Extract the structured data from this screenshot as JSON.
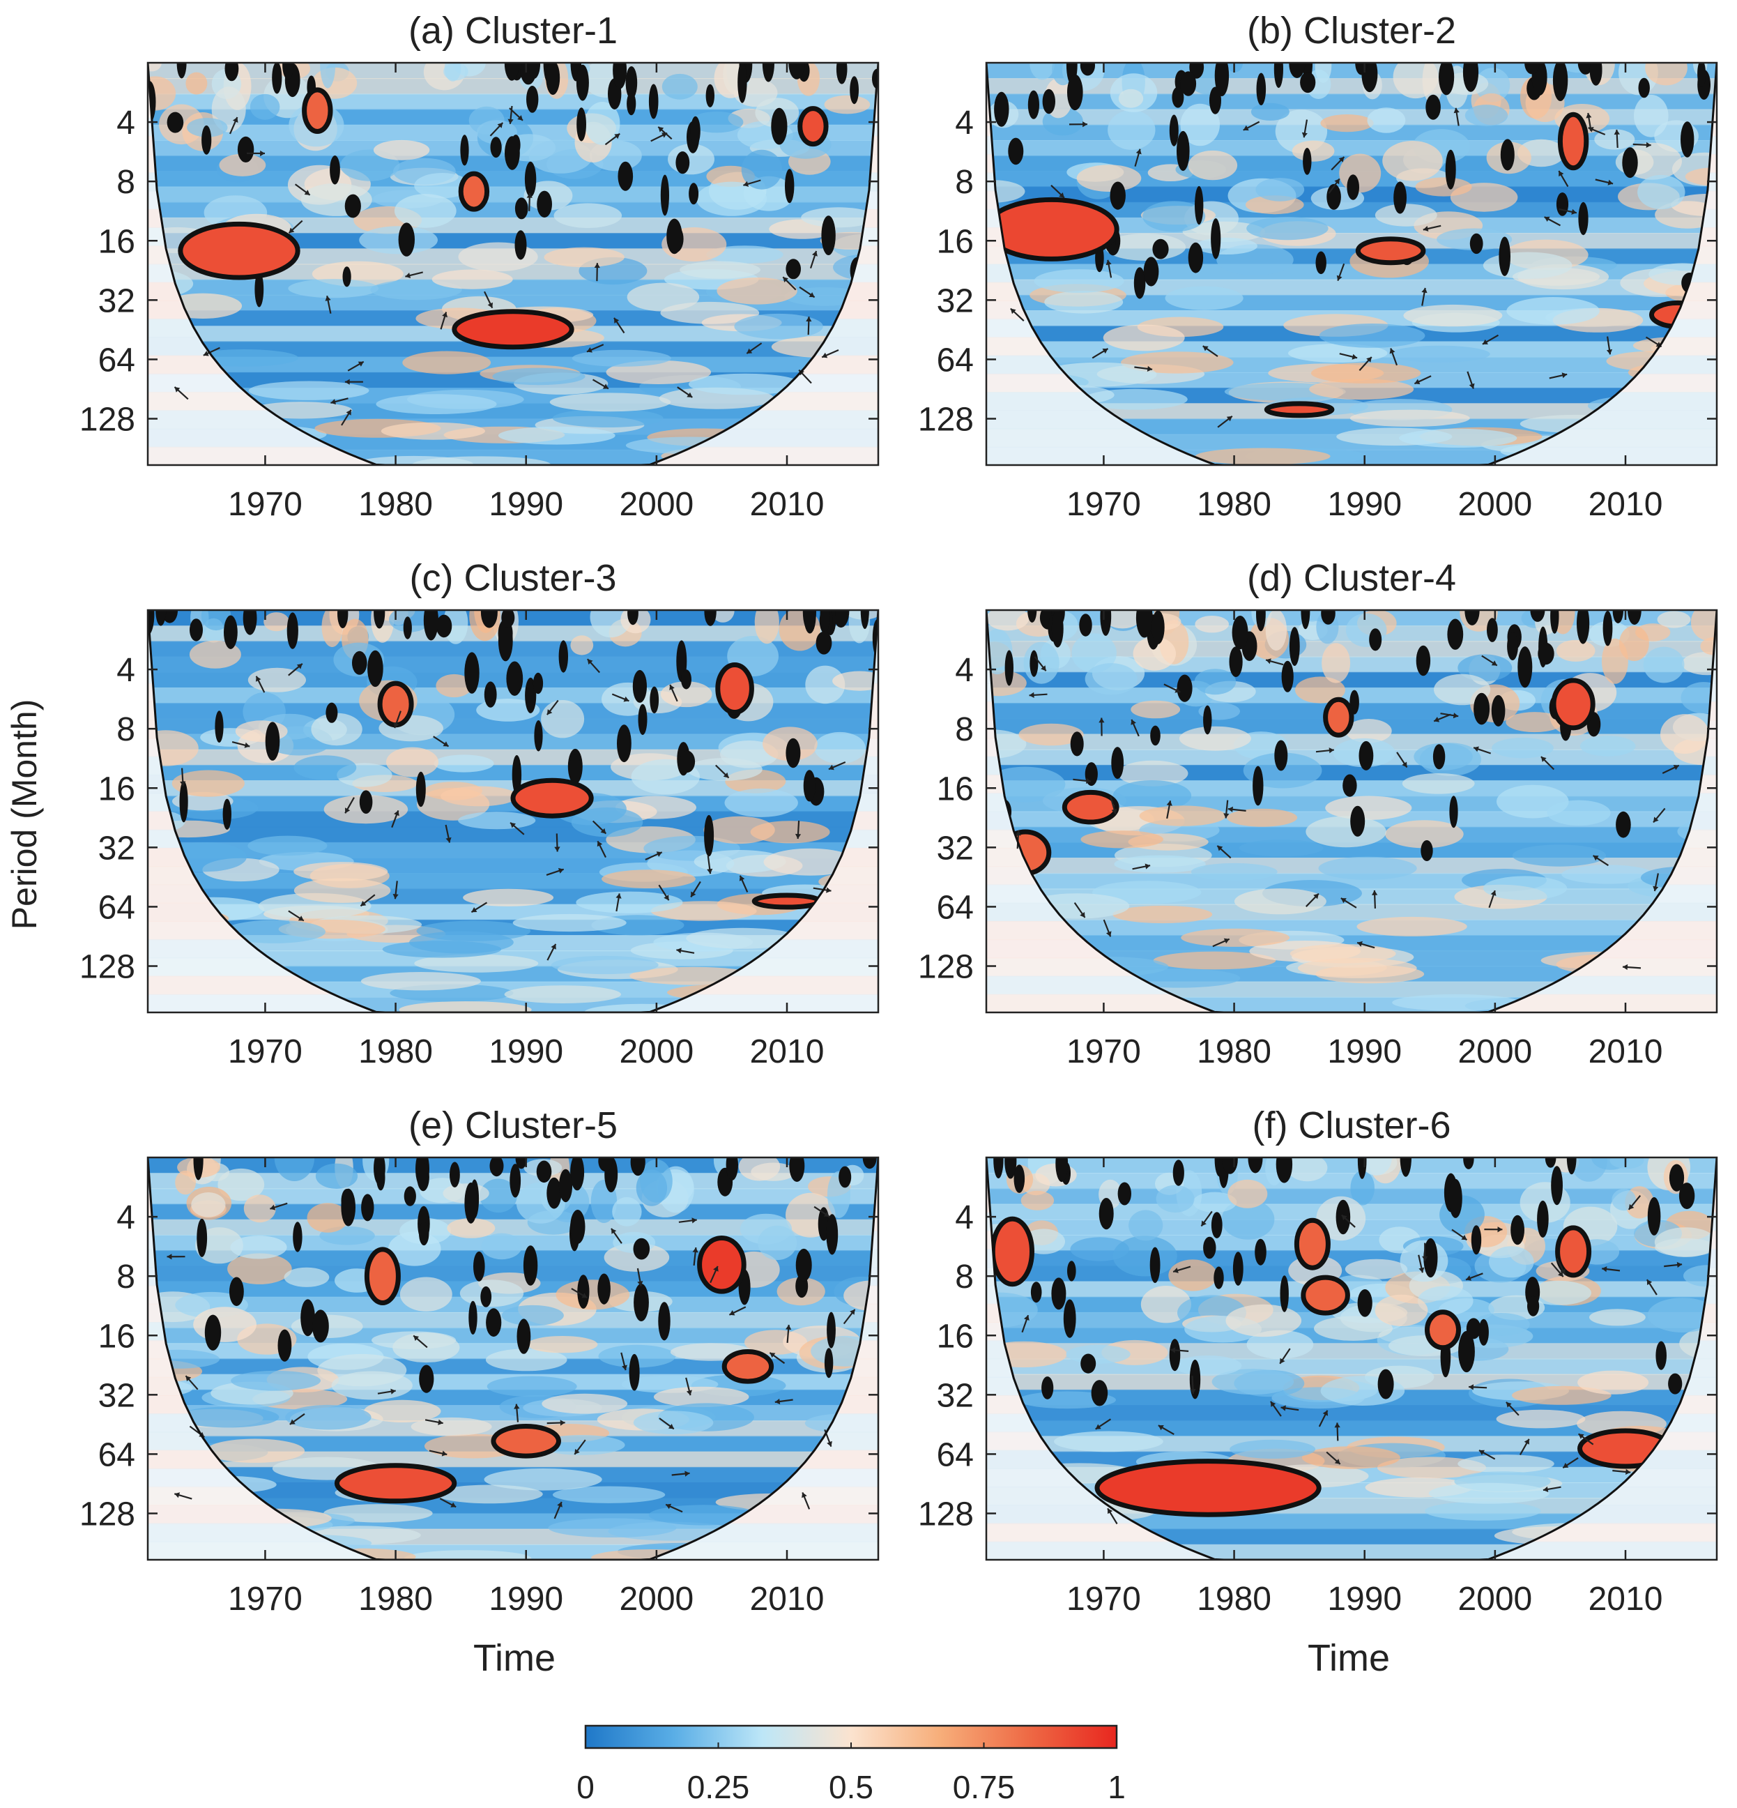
{
  "chart_data": {
    "type": "heatmap",
    "description_kind": "wavelet coherence",
    "shared": {
      "ylabel": "Period (Month)",
      "xlabel": "Time",
      "x_ticks": [
        1970,
        1980,
        1990,
        2000,
        2010
      ],
      "x_tick_labels": [
        "1970",
        "1980",
        "1990",
        "2000",
        "2010"
      ],
      "xlim": [
        1961,
        2017
      ],
      "y_ticks": [
        4,
        8,
        16,
        32,
        64,
        128
      ],
      "y_tick_labels": [
        "4",
        "8",
        "16",
        "32",
        "64",
        "128"
      ],
      "ylim": [
        2,
        220
      ],
      "y_scale": "log2",
      "y_reversed": true,
      "colorbar": {
        "ticks": [
          0,
          0.25,
          0.5,
          0.75,
          1
        ],
        "tick_labels": [
          "0",
          "0.25",
          "0.5",
          "0.75",
          "1"
        ],
        "colors": [
          "#1f78c8",
          "#5aaee6",
          "#bde6f7",
          "#fbe3cf",
          "#f7ae7a",
          "#ee6a45",
          "#e8271f"
        ]
      }
    },
    "panels": [
      {
        "title": "(a) Cluster-1",
        "significant_regions": [
          {
            "t": 1968,
            "period": 18,
            "dt": 4.5,
            "dp": 0.45,
            "value": 0.9
          },
          {
            "t": 1989,
            "period": 45,
            "dt": 4.5,
            "dp": 0.3,
            "value": 0.95
          },
          {
            "t": 1986,
            "period": 9,
            "dt": 1.0,
            "dp": 0.3,
            "value": 0.85
          },
          {
            "t": 1974,
            "period": 3.5,
            "dt": 1.0,
            "dp": 0.35,
            "value": 0.85
          },
          {
            "t": 2012,
            "period": 4.2,
            "dt": 1.0,
            "dp": 0.3,
            "value": 0.9
          }
        ]
      },
      {
        "title": "(b) Cluster-2",
        "significant_regions": [
          {
            "t": 1966,
            "period": 14,
            "dt": 5.0,
            "dp": 0.5,
            "value": 0.92
          },
          {
            "t": 1992,
            "period": 18,
            "dt": 2.5,
            "dp": 0.2,
            "value": 0.88
          },
          {
            "t": 1985,
            "period": 115,
            "dt": 2.5,
            "dp": 0.1,
            "value": 0.9
          },
          {
            "t": 2006,
            "period": 5,
            "dt": 1.0,
            "dp": 0.45,
            "value": 0.88
          },
          {
            "t": 2014,
            "period": 38,
            "dt": 2.0,
            "dp": 0.2,
            "value": 0.9
          }
        ]
      },
      {
        "title": "(c) Cluster-3",
        "significant_regions": [
          {
            "t": 1992,
            "period": 18,
            "dt": 3.0,
            "dp": 0.3,
            "value": 0.9
          },
          {
            "t": 1980,
            "period": 6,
            "dt": 1.2,
            "dp": 0.35,
            "value": 0.85
          },
          {
            "t": 2006,
            "period": 5,
            "dt": 1.3,
            "dp": 0.4,
            "value": 0.9
          },
          {
            "t": 2010,
            "period": 60,
            "dt": 2.5,
            "dp": 0.1,
            "value": 0.9
          }
        ]
      },
      {
        "title": "(d) Cluster-4",
        "significant_regions": [
          {
            "t": 1969,
            "period": 20,
            "dt": 2.0,
            "dp": 0.25,
            "value": 0.88
          },
          {
            "t": 2006,
            "period": 6,
            "dt": 1.5,
            "dp": 0.4,
            "value": 0.9
          },
          {
            "t": 1964,
            "period": 34,
            "dt": 1.8,
            "dp": 0.35,
            "value": 0.85
          },
          {
            "t": 1988,
            "period": 7,
            "dt": 1.0,
            "dp": 0.3,
            "value": 0.85
          }
        ]
      },
      {
        "title": "(e) Cluster-5",
        "significant_regions": [
          {
            "t": 1980,
            "period": 90,
            "dt": 4.5,
            "dp": 0.3,
            "value": 0.9
          },
          {
            "t": 2005,
            "period": 7,
            "dt": 1.7,
            "dp": 0.45,
            "value": 0.95
          },
          {
            "t": 1990,
            "period": 55,
            "dt": 2.5,
            "dp": 0.25,
            "value": 0.85
          },
          {
            "t": 1979,
            "period": 8,
            "dt": 1.2,
            "dp": 0.45,
            "value": 0.85
          },
          {
            "t": 2007,
            "period": 23,
            "dt": 1.8,
            "dp": 0.25,
            "value": 0.85
          }
        ]
      },
      {
        "title": "(f) Cluster-6",
        "significant_regions": [
          {
            "t": 1978,
            "period": 95,
            "dt": 8.5,
            "dp": 0.45,
            "value": 0.95
          },
          {
            "t": 2010,
            "period": 60,
            "dt": 3.5,
            "dp": 0.3,
            "value": 0.9
          },
          {
            "t": 1963,
            "period": 6,
            "dt": 1.5,
            "dp": 0.55,
            "value": 0.9
          },
          {
            "t": 1987,
            "period": 10,
            "dt": 1.7,
            "dp": 0.3,
            "value": 0.85
          },
          {
            "t": 2006,
            "period": 6,
            "dt": 1.2,
            "dp": 0.4,
            "value": 0.88
          },
          {
            "t": 1996,
            "period": 15,
            "dt": 1.2,
            "dp": 0.3,
            "value": 0.85
          },
          {
            "t": 1986,
            "period": 5.5,
            "dt": 1.2,
            "dp": 0.4,
            "value": 0.85
          }
        ]
      }
    ]
  }
}
